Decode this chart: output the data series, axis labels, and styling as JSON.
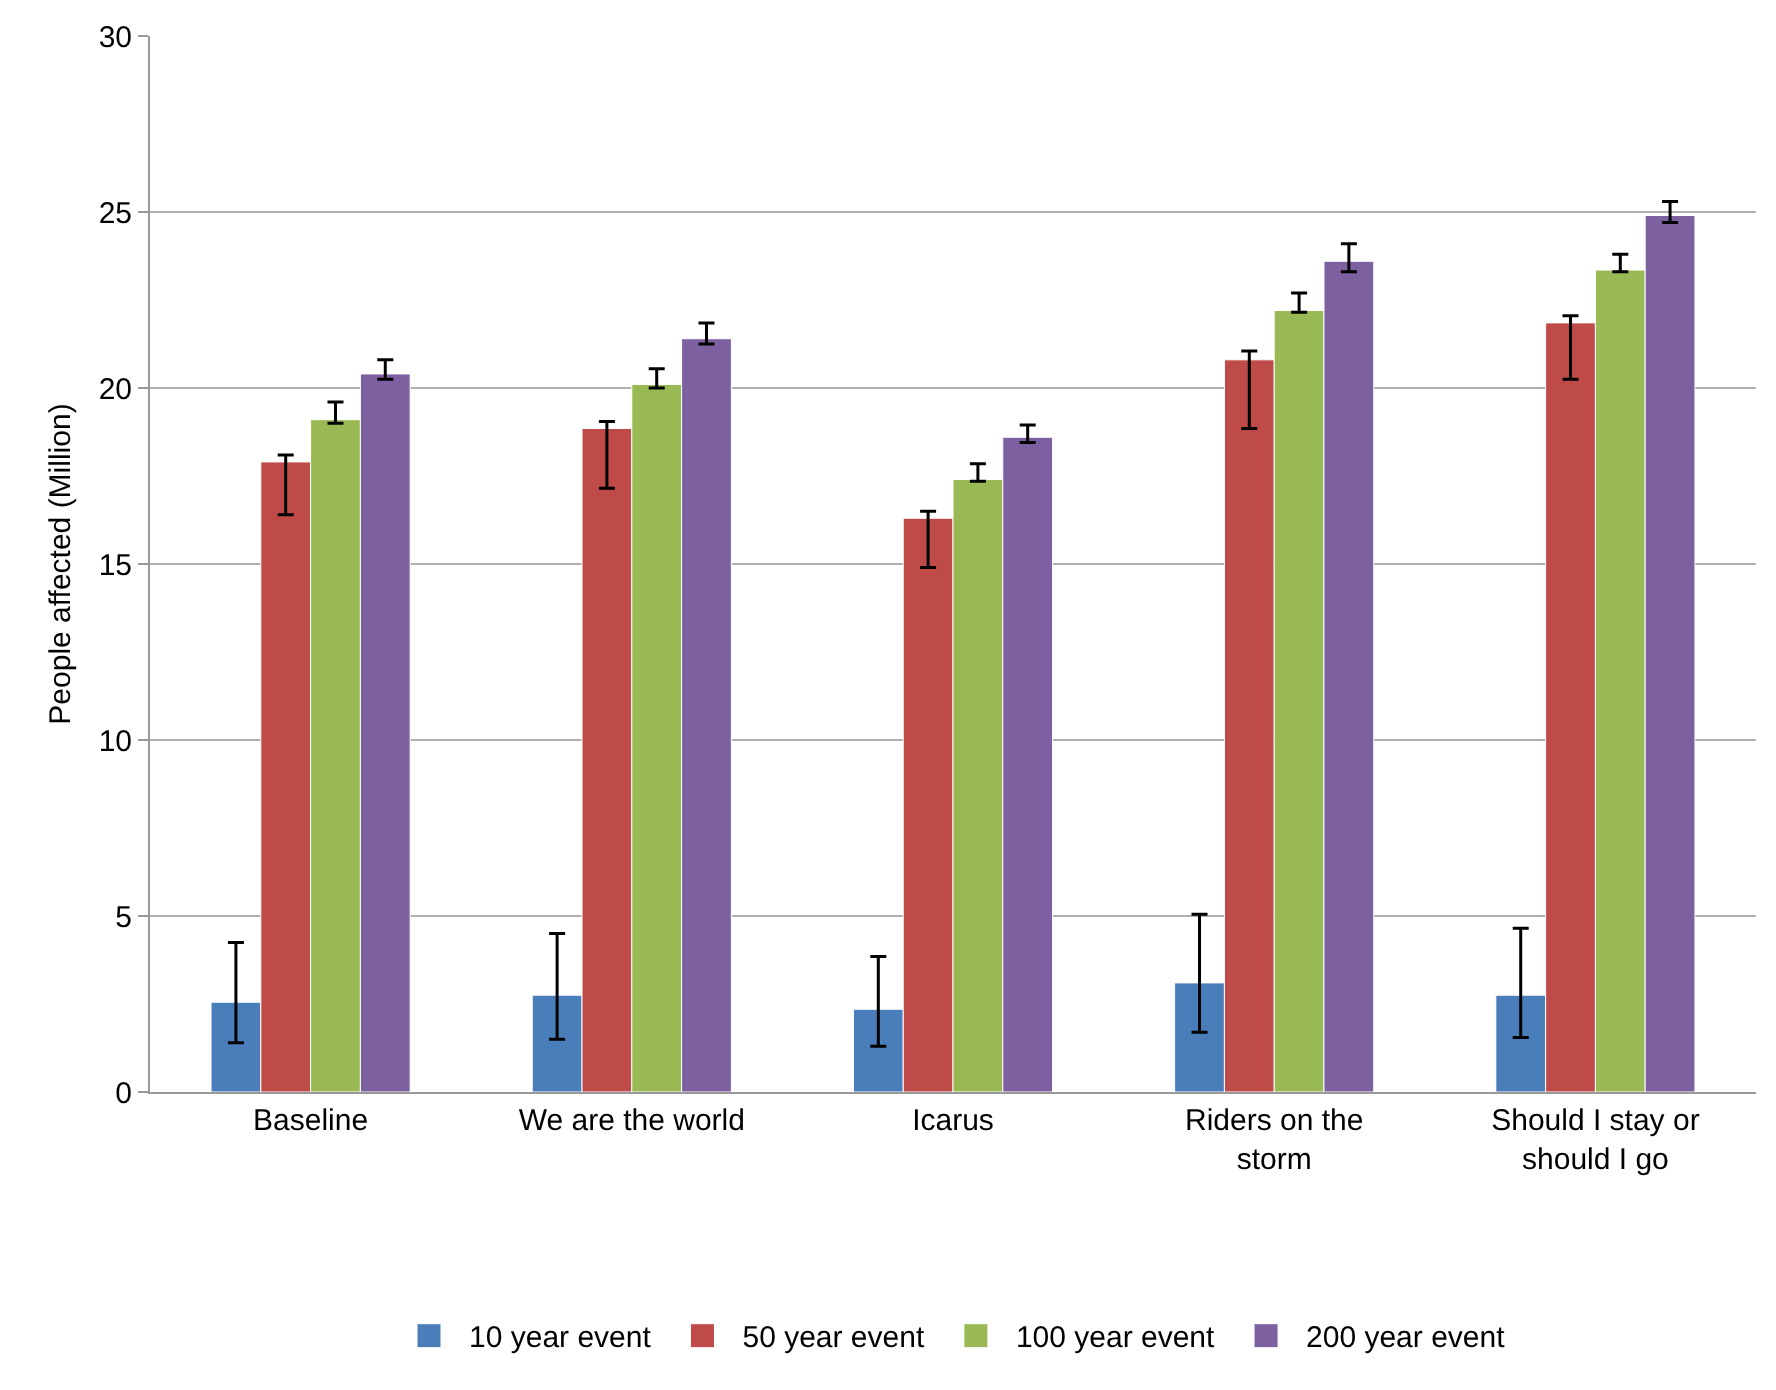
{
  "chart_data": {
    "type": "bar",
    "ylabel": "People affected (Million)",
    "categories": [
      "Baseline",
      "We are the world",
      "Icarus",
      "Riders on the storm",
      "Should I stay or should I go"
    ],
    "series": [
      {
        "name": "10 year event",
        "color": "#4a7ebb",
        "values": [
          2.55,
          2.75,
          2.35,
          3.1,
          2.75
        ],
        "errors": [
          [
            1.4,
            4.25
          ],
          [
            1.5,
            4.5
          ],
          [
            1.3,
            3.85
          ],
          [
            1.7,
            5.05
          ],
          [
            1.55,
            4.65
          ]
        ]
      },
      {
        "name": "50 year event",
        "color": "#be4b48",
        "values": [
          17.9,
          18.85,
          16.3,
          20.8,
          21.85
        ],
        "errors": [
          [
            16.4,
            18.1
          ],
          [
            17.15,
            19.05
          ],
          [
            14.9,
            16.5
          ],
          [
            18.85,
            21.05
          ],
          [
            20.25,
            22.05
          ]
        ]
      },
      {
        "name": "100 year event",
        "color": "#98b954",
        "values": [
          19.1,
          20.1,
          17.4,
          22.2,
          23.35
        ],
        "errors": [
          [
            19.0,
            19.6
          ],
          [
            20.0,
            20.55
          ],
          [
            17.35,
            17.85
          ],
          [
            22.15,
            22.7
          ],
          [
            23.3,
            23.8
          ]
        ]
      },
      {
        "name": "200 year event",
        "color": "#7d60a0",
        "values": [
          20.4,
          21.4,
          18.6,
          23.6,
          24.9
        ],
        "errors": [
          [
            20.25,
            20.8
          ],
          [
            21.25,
            21.85
          ],
          [
            18.45,
            18.95
          ],
          [
            23.3,
            24.1
          ],
          [
            24.7,
            25.3
          ]
        ]
      }
    ],
    "ylim": [
      0,
      30
    ],
    "yticks": [
      0,
      5,
      10,
      15,
      20,
      25,
      30
    ],
    "grid": "y",
    "legend": "bottom"
  }
}
